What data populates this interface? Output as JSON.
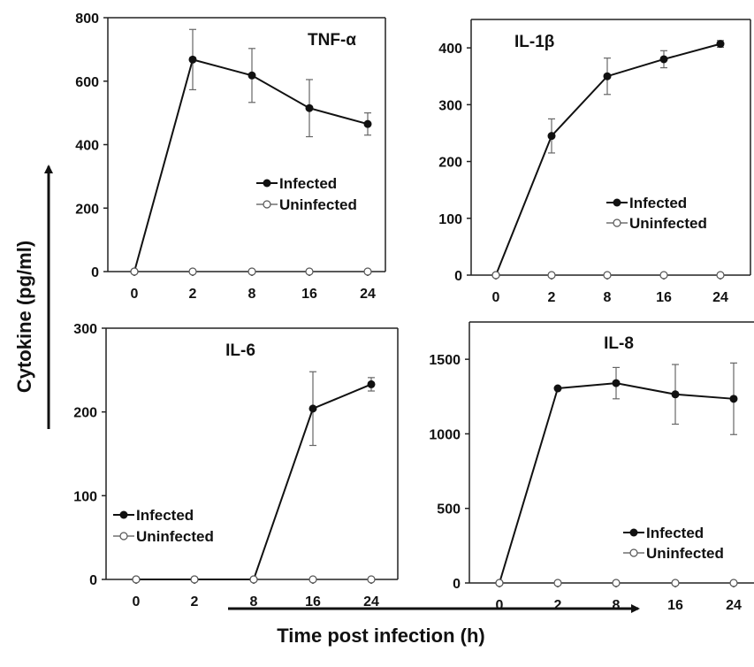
{
  "figure": {
    "ylabel": "Cytokine (pg/ml)",
    "xlabel": "Time post infection (h)"
  },
  "chart_data": [
    {
      "type": "line",
      "title": "TNF-α",
      "categories": [
        "0",
        "2",
        "8",
        "16",
        "24"
      ],
      "ylim": [
        0,
        800
      ],
      "yticks": [
        0,
        200,
        400,
        600,
        800
      ],
      "legend": "middle-right",
      "series": [
        {
          "name": "Infected",
          "values": [
            0,
            668,
            618,
            515,
            465
          ],
          "errors": [
            0,
            95,
            85,
            90,
            35
          ],
          "marker": "filled"
        },
        {
          "name": "Uninfected",
          "values": [
            0,
            0,
            0,
            0,
            0
          ],
          "marker": "open"
        }
      ]
    },
    {
      "type": "line",
      "title": "IL-1β",
      "categories": [
        "0",
        "2",
        "8",
        "16",
        "24"
      ],
      "ylim": [
        0,
        450
      ],
      "yticks": [
        0,
        100,
        200,
        300,
        400
      ],
      "legend": "middle-right",
      "series": [
        {
          "name": "Infected",
          "values": [
            0,
            245,
            350,
            380,
            407
          ],
          "errors": [
            0,
            30,
            32,
            15,
            6
          ],
          "marker": "filled"
        },
        {
          "name": "Uninfected",
          "values": [
            0,
            0,
            0,
            0,
            0
          ],
          "marker": "open"
        }
      ]
    },
    {
      "type": "line",
      "title": "IL-6",
      "categories": [
        "0",
        "2",
        "8",
        "16",
        "24"
      ],
      "ylim": [
        0,
        300
      ],
      "yticks": [
        0,
        100,
        200,
        300
      ],
      "legend": "bottom-left",
      "series": [
        {
          "name": "Infected",
          "values": [
            0,
            0,
            0,
            204,
            233
          ],
          "errors": [
            0,
            0,
            0,
            44,
            8
          ],
          "marker": "filled"
        },
        {
          "name": "Uninfected",
          "values": [
            0,
            0,
            0,
            0,
            0
          ],
          "marker": "open"
        }
      ]
    },
    {
      "type": "line",
      "title": "IL-8",
      "categories": [
        "0",
        "2",
        "8",
        "16",
        "24"
      ],
      "ylim": [
        0,
        1750
      ],
      "yticks": [
        0,
        500,
        1000,
        1500
      ],
      "legend": "bottom-right",
      "series": [
        {
          "name": "Infected",
          "values": [
            0,
            1305,
            1340,
            1265,
            1235
          ],
          "errors": [
            0,
            0,
            105,
            200,
            240
          ],
          "marker": "filled"
        },
        {
          "name": "Uninfected",
          "values": [
            0,
            0,
            0,
            0,
            0
          ],
          "marker": "open"
        }
      ]
    }
  ]
}
